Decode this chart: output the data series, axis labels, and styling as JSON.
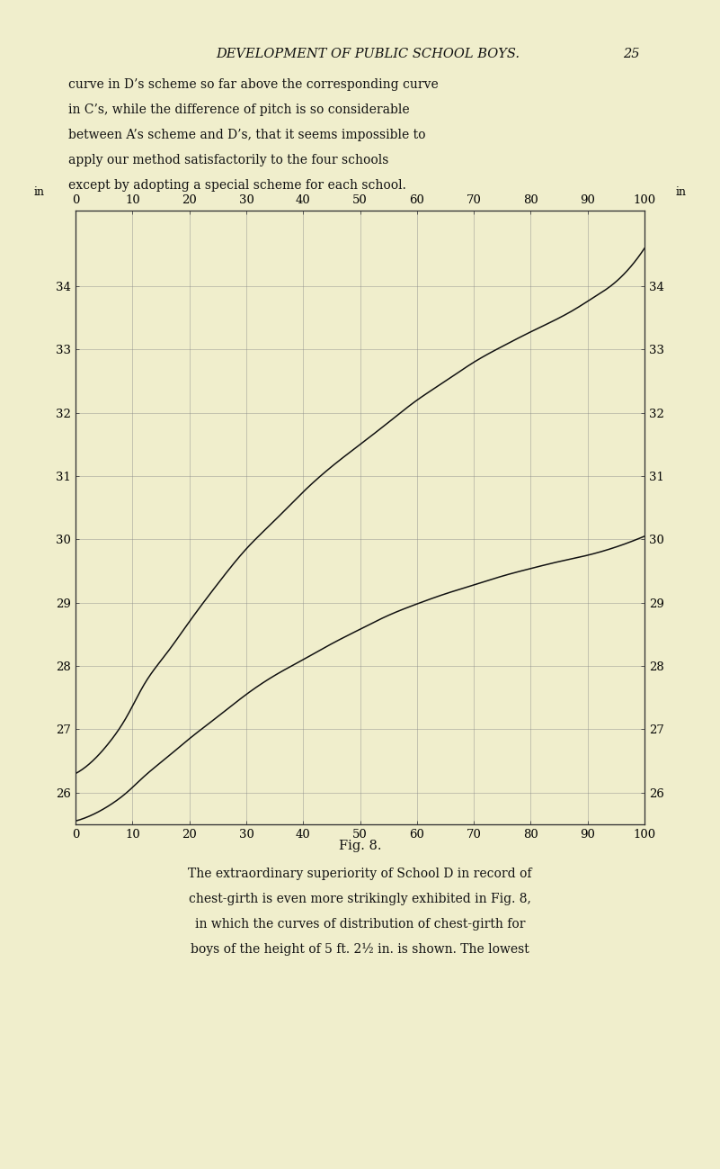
{
  "background_color": "#f0eecc",
  "plot_bg_color": "#f0eecc",
  "xlim": [
    0,
    100
  ],
  "ylim": [
    25.5,
    35.2
  ],
  "x_ticks": [
    0,
    10,
    20,
    30,
    40,
    50,
    60,
    70,
    80,
    90,
    100
  ],
  "y_ticks": [
    26,
    27,
    28,
    29,
    30,
    31,
    32,
    33,
    34
  ],
  "grid_color": "#888888",
  "line_color": "#111111",
  "curve1_x": [
    0,
    3,
    6,
    9,
    12,
    16,
    20,
    25,
    30,
    35,
    40,
    45,
    50,
    55,
    60,
    65,
    70,
    75,
    80,
    85,
    88,
    91,
    94,
    97,
    100
  ],
  "curve1_y": [
    26.3,
    26.5,
    26.8,
    27.2,
    27.7,
    28.2,
    28.7,
    29.3,
    29.85,
    30.3,
    30.75,
    31.15,
    31.5,
    31.85,
    32.2,
    32.5,
    32.8,
    33.05,
    33.28,
    33.5,
    33.65,
    33.82,
    34.0,
    34.25,
    34.6
  ],
  "curve2_x": [
    0,
    3,
    6,
    9,
    12,
    16,
    20,
    25,
    30,
    35,
    40,
    45,
    50,
    55,
    60,
    65,
    70,
    75,
    80,
    85,
    90,
    95,
    100
  ],
  "curve2_y": [
    25.55,
    25.65,
    25.8,
    26.0,
    26.25,
    26.55,
    26.85,
    27.2,
    27.55,
    27.85,
    28.1,
    28.35,
    28.58,
    28.8,
    28.98,
    29.14,
    29.28,
    29.42,
    29.54,
    29.65,
    29.75,
    29.88,
    30.05
  ],
  "fig_caption": "Fig. 8.",
  "header_title": "DEVELOPMENT OF PUBLIC SCHOOL BOYS.",
  "header_page": "25",
  "body_lines": [
    "curve in D’s scheme so far above the corresponding curve",
    "in C’s, while the difference of pitch is so considerable",
    "between A’s scheme and D’s, that it seems impossible to",
    "apply our method satisfactorily to the four schools",
    "except by adopting a special scheme for each school."
  ],
  "footer_lines": [
    "The extraordinary superiority of School D in record of",
    "chest-girth is even more strikingly exhibited in Fig. 8,",
    "in which the curves of distribution of chest-girth for",
    "boys of the height of 5 ft. 2½ in. is shown. The lowest"
  ]
}
